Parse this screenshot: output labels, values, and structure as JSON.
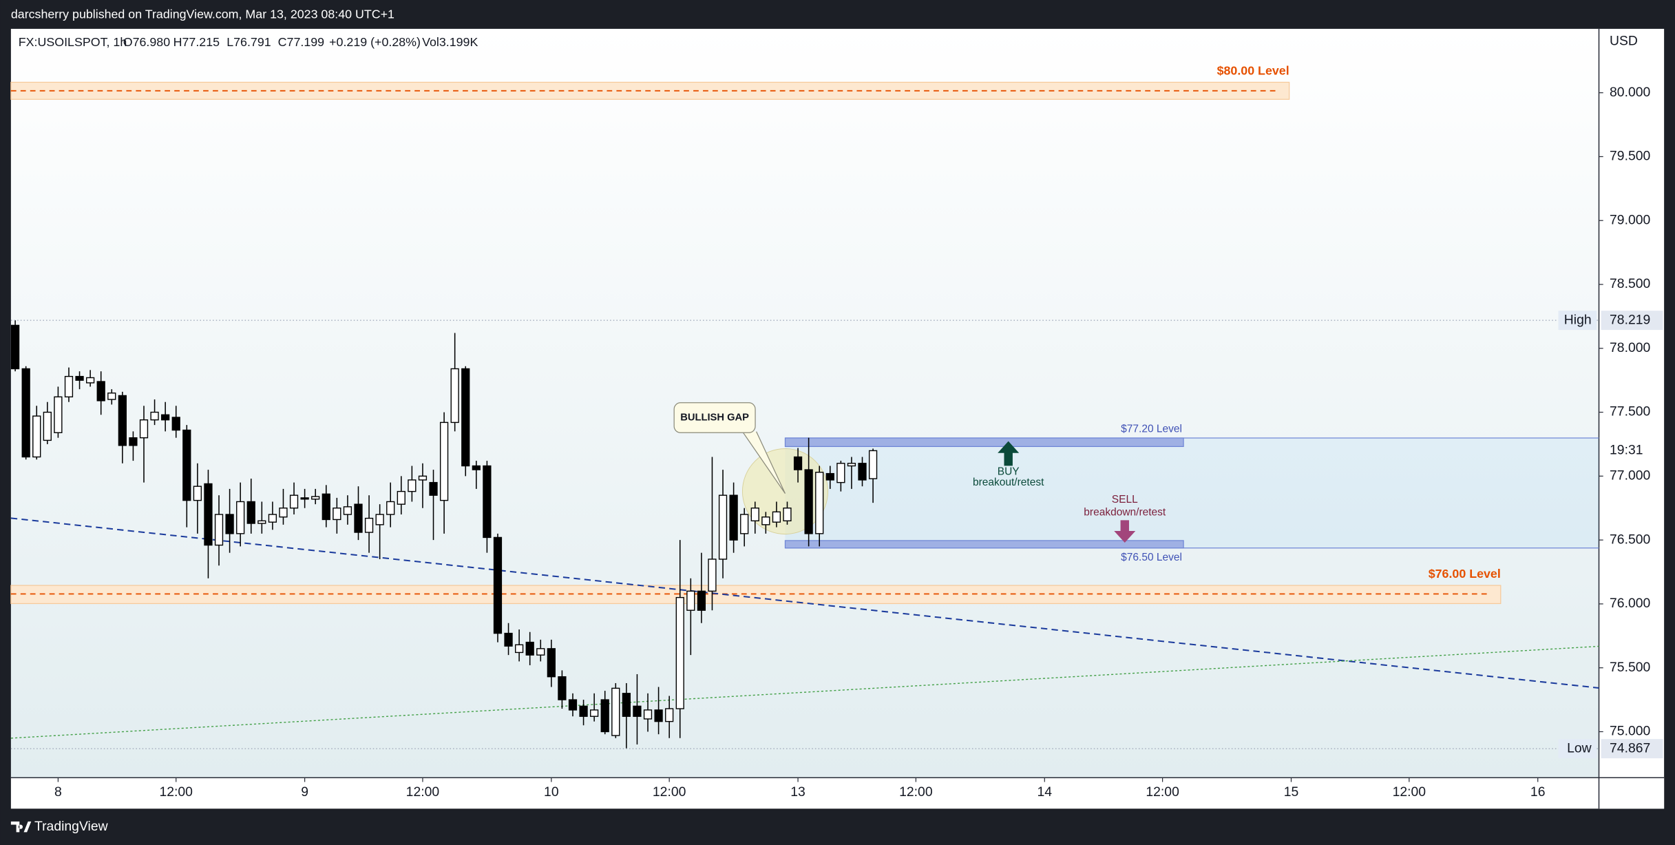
{
  "header": {
    "publisher": "darcsherry published on TradingView.com, Mar 13, 2023 08:40 UTC+1"
  },
  "chart_data": {
    "type": "candlestick",
    "legend": [
      "FX:USOILSPOT, 1h",
      "O76.980",
      "H77.215",
      "L76.791",
      "C77.199",
      "+0.219 (+0.28%)",
      "Vol3.199K"
    ],
    "open": [
      78.18,
      77.84,
      77.15,
      77.28,
      77.34,
      77.62,
      77.78,
      77.73,
      77.74,
      77.6,
      77.63,
      77.3,
      77.3,
      77.44,
      77.48,
      77.46,
      77.36,
      76.81,
      76.94,
      76.46,
      76.7,
      76.55,
      76.8,
      76.63,
      76.64,
      76.68,
      76.75,
      76.83,
      76.82,
      76.86,
      76.66,
      76.7,
      76.78,
      76.56,
      76.62,
      76.7,
      76.78,
      76.88,
      76.97,
      76.95,
      76.81,
      77.42,
      77.84,
      77.08,
      77.08,
      76.52,
      75.77,
      75.62,
      75.7,
      75.6,
      75.65,
      75.43,
      75.25,
      75.2,
      75.12,
      75.25,
      74.97,
      75.3,
      75.2,
      75.1,
      75.17,
      75.08,
      75.18,
      75.95,
      76.1,
      76.1,
      76.35,
      76.85,
      76.55,
      76.65,
      76.62,
      76.64,
      76.65,
      77.15,
      77.05,
      76.55,
      77.02,
      76.95,
      77.08,
      77.1,
      76.98
    ],
    "high": [
      78.22,
      77.86,
      77.55,
      77.58,
      77.7,
      77.85,
      77.82,
      77.83,
      77.82,
      77.68,
      77.66,
      77.35,
      77.55,
      77.6,
      77.58,
      77.55,
      77.4,
      77.1,
      77.05,
      76.85,
      76.9,
      76.95,
      76.98,
      76.8,
      76.8,
      76.9,
      76.95,
      76.9,
      76.9,
      76.93,
      76.83,
      76.85,
      76.92,
      76.85,
      76.78,
      76.95,
      77.0,
      77.08,
      77.1,
      77.05,
      77.5,
      78.12,
      77.86,
      77.12,
      77.12,
      76.55,
      75.85,
      75.8,
      75.78,
      75.72,
      75.72,
      75.48,
      75.3,
      75.25,
      75.3,
      75.32,
      75.38,
      75.38,
      75.45,
      75.3,
      75.35,
      75.28,
      76.5,
      76.2,
      76.4,
      77.15,
      77.05,
      76.95,
      76.75,
      76.8,
      76.72,
      76.8,
      76.8,
      77.22,
      77.3,
      77.08,
      77.08,
      77.12,
      77.15,
      77.15,
      77.215
    ],
    "low": [
      77.82,
      77.13,
      77.13,
      77.25,
      77.3,
      77.58,
      77.68,
      77.7,
      77.48,
      77.56,
      77.1,
      77.12,
      76.95,
      77.4,
      77.35,
      77.3,
      76.6,
      76.55,
      76.2,
      76.3,
      76.4,
      76.45,
      76.55,
      76.55,
      76.58,
      76.62,
      76.7,
      76.75,
      76.78,
      76.6,
      76.55,
      76.62,
      76.5,
      76.4,
      76.35,
      76.6,
      76.7,
      76.8,
      76.75,
      76.5,
      76.55,
      77.35,
      77.0,
      76.9,
      76.4,
      75.7,
      75.6,
      75.55,
      75.52,
      75.55,
      75.35,
      75.18,
      75.12,
      75.05,
      75.08,
      74.98,
      74.95,
      74.87,
      74.9,
      75.0,
      74.98,
      74.95,
      74.95,
      75.6,
      75.85,
      75.95,
      76.2,
      76.4,
      76.45,
      76.55,
      76.55,
      76.6,
      76.62,
      76.95,
      76.45,
      76.45,
      76.9,
      76.88,
      76.9,
      76.92,
      76.791
    ],
    "close": [
      77.84,
      77.15,
      77.47,
      77.5,
      77.62,
      77.78,
      77.75,
      77.77,
      77.59,
      77.65,
      77.24,
      77.24,
      77.44,
      77.5,
      77.44,
      77.36,
      76.81,
      76.92,
      76.46,
      76.7,
      76.55,
      76.8,
      76.63,
      76.65,
      76.7,
      76.75,
      76.85,
      76.82,
      76.84,
      76.66,
      76.75,
      76.76,
      76.56,
      76.67,
      76.7,
      76.8,
      76.88,
      76.97,
      77.0,
      76.85,
      77.42,
      77.84,
      77.08,
      77.05,
      76.52,
      75.77,
      75.67,
      75.68,
      75.6,
      75.65,
      75.43,
      75.25,
      75.17,
      75.12,
      75.17,
      75.0,
      75.34,
      75.12,
      75.12,
      75.17,
      75.08,
      75.18,
      76.05,
      76.1,
      75.95,
      76.35,
      76.85,
      76.5,
      76.7,
      76.75,
      76.68,
      76.72,
      76.75,
      77.05,
      76.55,
      77.03,
      76.97,
      77.1,
      77.1,
      76.97,
      77.199
    ],
    "up_color": "#ffffff",
    "down_color": "#000000",
    "ylim": [
      74.64,
      80.5
    ],
    "yticks": [
      {
        "value": 75,
        "label": "75.000"
      },
      {
        "value": 75.5,
        "label": "75.500"
      },
      {
        "value": 76,
        "label": "76.000"
      },
      {
        "value": 76.5,
        "label": "76.500"
      },
      {
        "value": 77,
        "label": "77.000"
      },
      {
        "value": 77.5,
        "label": "77.500"
      },
      {
        "value": 78,
        "label": "78.000"
      },
      {
        "value": 78.5,
        "label": "78.500"
      },
      {
        "value": 79,
        "label": "79.000"
      },
      {
        "value": 79.5,
        "label": "79.500"
      },
      {
        "value": 80,
        "label": "80.000"
      }
    ],
    "y_axis_unit": "USD",
    "xlim": [
      -0.4,
      147.7
    ],
    "xticks": [
      {
        "value": 4,
        "label": "8"
      },
      {
        "value": 15,
        "label": "12:00"
      },
      {
        "value": 27,
        "label": "9"
      },
      {
        "value": 38,
        "label": "12:00"
      },
      {
        "value": 50,
        "label": "10"
      },
      {
        "value": 61,
        "label": "12:00"
      },
      {
        "value": 73,
        "label": "13"
      },
      {
        "value": 84,
        "label": "12:00"
      },
      {
        "value": 96,
        "label": "14"
      },
      {
        "value": 107,
        "label": "12:00"
      },
      {
        "value": 119,
        "label": "15"
      },
      {
        "value": 130,
        "label": "12:00"
      },
      {
        "value": 142,
        "label": "16"
      }
    ],
    "high_marker": {
      "label": "High",
      "value": 78.219
    },
    "low_marker": {
      "label": "Low",
      "value": 74.867
    },
    "countdown": "19:31",
    "annotations": {
      "level_80": "$80.00 Level",
      "level_76": "$76.00 Level",
      "level_7720": "$77.20 Level",
      "level_7650": "$76.50 Level",
      "bullish_gap": "BULLISH GAP",
      "buy": "BUY",
      "buy_note": "breakout/retest",
      "sell": "SELL",
      "sell_note": "breakdown/retest"
    }
  },
  "footer": {
    "brand": "TradingView"
  }
}
